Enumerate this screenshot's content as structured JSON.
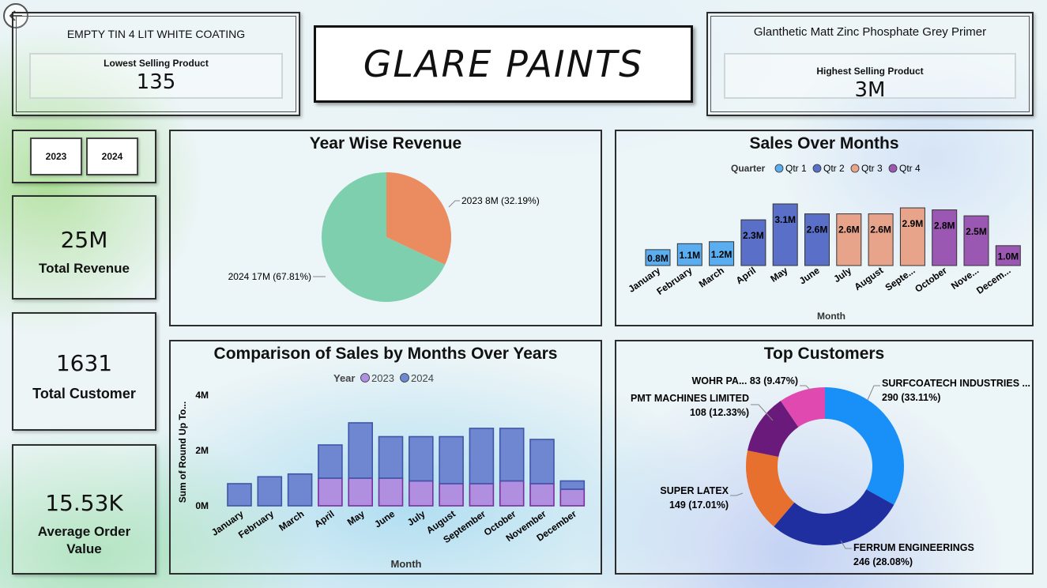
{
  "lowest_product": {
    "name": "EMPTY TIN 4 LIT WHITE COATING",
    "label": "Lowest Selling Product",
    "value": "135"
  },
  "highest_product": {
    "name": "Glanthetic Matt Zinc Phosphate Grey Primer",
    "label": "Highest Selling Product",
    "value": "3M"
  },
  "brand": {
    "title": "GLARE PAINTS"
  },
  "year_slicer": [
    "2023",
    "2024"
  ],
  "kpis": {
    "revenue": {
      "value": "25M",
      "label": "Total Revenue"
    },
    "customers": {
      "value": "1631",
      "label": "Total Customer"
    },
    "aov": {
      "value": "15.53K",
      "label_line1": "Average Order",
      "label_line2": "Value"
    }
  },
  "icons": {
    "back": "back-arrow-icon"
  },
  "chart_data": [
    {
      "id": "year_wise_revenue",
      "type": "pie",
      "title": "Year Wise Revenue",
      "labels": [
        "2023",
        "2024"
      ],
      "values": [
        8,
        17
      ],
      "percents": [
        32.19,
        67.81
      ],
      "data_labels": [
        "2023 8M (32.19%)",
        "2024 17M (67.81%)"
      ],
      "colors": [
        "#ea8c60",
        "#7ecfae"
      ]
    },
    {
      "id": "sales_over_months",
      "type": "bar",
      "title": "Sales Over Months",
      "legend_title": "Quarter",
      "legend": [
        {
          "name": "Qtr 1",
          "color": "#5aaef0"
        },
        {
          "name": "Qtr 2",
          "color": "#5a6fc8"
        },
        {
          "name": "Qtr 3",
          "color": "#e8a48a"
        },
        {
          "name": "Qtr 4",
          "color": "#9a58b2"
        }
      ],
      "categories": [
        "January",
        "February",
        "March",
        "April",
        "May",
        "June",
        "July",
        "August",
        "Septe...",
        "October",
        "Nove...",
        "Decem..."
      ],
      "values": [
        0.8,
        1.1,
        1.2,
        2.3,
        3.1,
        2.6,
        2.6,
        2.6,
        2.9,
        2.8,
        2.5,
        1.0
      ],
      "data_labels": [
        "0.8M",
        "1.1M",
        "1.2M",
        "2.3M",
        "3.1M",
        "2.6M",
        "2.6M",
        "2.6M",
        "2.9M",
        "2.8M",
        "2.5M",
        "1.0M"
      ],
      "quarter_index": [
        0,
        0,
        0,
        1,
        1,
        1,
        2,
        2,
        2,
        3,
        3,
        3
      ],
      "xlabel": "Month",
      "ylim": [
        0,
        3.1
      ]
    },
    {
      "id": "comparison_sales",
      "type": "bar",
      "stacked": true,
      "title": "Comparison of Sales by Months Over Years",
      "legend_title": "Year",
      "categories": [
        "January",
        "February",
        "March",
        "April",
        "May",
        "June",
        "July",
        "August",
        "September",
        "October",
        "November",
        "December"
      ],
      "series": [
        {
          "name": "2023",
          "color": "#b08ee0",
          "values": [
            0,
            0,
            0,
            1.0,
            1.0,
            1.0,
            0.9,
            0.8,
            0.8,
            0.9,
            0.8,
            0.6
          ]
        },
        {
          "name": "2024",
          "color": "#6f86d0",
          "values": [
            0.8,
            1.05,
            1.15,
            1.2,
            2.0,
            1.5,
            1.6,
            1.7,
            2.0,
            1.9,
            1.6,
            0.3
          ]
        }
      ],
      "yticks": [
        "4M",
        "2M",
        "0M"
      ],
      "ytick_values": [
        4,
        2,
        0
      ],
      "xlabel": "Month",
      "ylabel": "Sum of Round Up To...",
      "ylim": [
        0,
        4
      ]
    },
    {
      "id": "top_customers",
      "type": "pie",
      "donut": true,
      "title": "Top Customers",
      "labels": [
        "SURFCOATECH INDUSTRIES ...",
        "FERRUM ENGINEERINGS",
        "SUPER LATEX",
        "PMT MACHINES LIMITED",
        "WOHR PA..."
      ],
      "values": [
        290,
        246,
        149,
        108,
        83
      ],
      "percents": [
        33.11,
        28.08,
        17.01,
        12.33,
        9.47
      ],
      "value_labels": [
        "290 (33.11%)",
        "246 (28.08%)",
        "149 (17.01%)",
        "108 (12.33%)",
        "83 (9.47%)"
      ],
      "colors": [
        "#1890f8",
        "#1f2fa0",
        "#e8702f",
        "#6a1a7a",
        "#e04ab0"
      ]
    }
  ]
}
